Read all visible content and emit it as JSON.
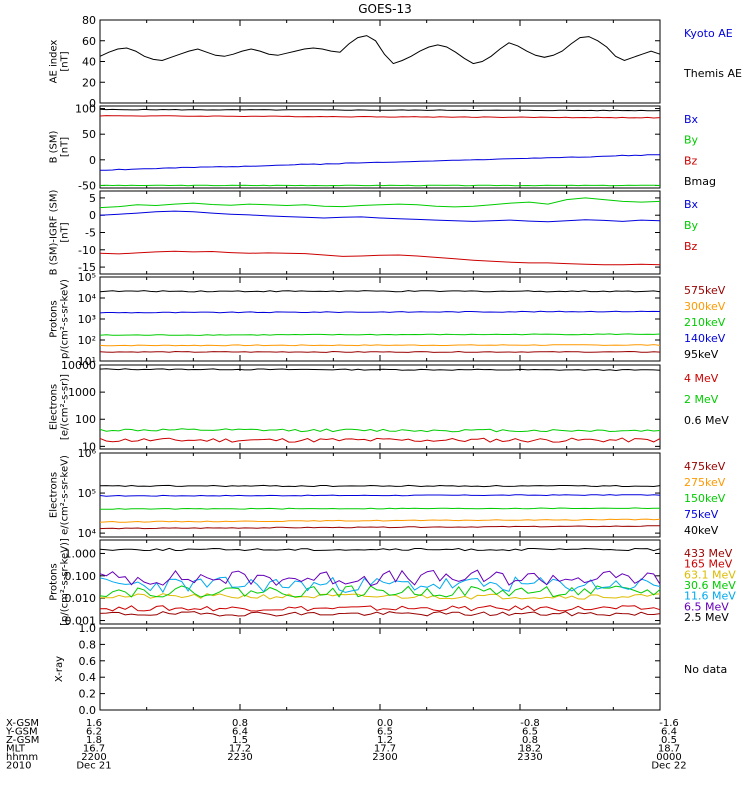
{
  "title": "GOES-13",
  "colors": {
    "black": "#000000",
    "blue": "#0000dd",
    "green": "#00cc00",
    "red": "#cc0000",
    "orange": "#ff9900",
    "gold": "#ddbb00",
    "cyan": "#00aaee",
    "purple": "#6600bb",
    "darkred": "#990000"
  },
  "chart_data": [
    {
      "type": "line",
      "ylabel": [
        "AE index",
        "[nT]"
      ],
      "ylim": [
        0,
        80
      ],
      "scale": "linear",
      "yticks": [
        0,
        20,
        40,
        60,
        80
      ],
      "ytick_labels": [
        "0",
        "20",
        "40",
        "60",
        "80"
      ],
      "series": [
        {
          "name": "Kyoto AE",
          "color": "blue",
          "base": 18,
          "amp": 3,
          "noise": 1,
          "seed": 1
        },
        {
          "name": "Themis AE",
          "color": "black",
          "values": [
            45,
            49,
            52,
            53,
            50,
            45,
            42,
            41,
            44,
            47,
            50,
            52,
            49,
            46,
            45,
            47,
            50,
            52,
            50,
            47,
            46,
            48,
            50,
            52,
            53,
            52,
            50,
            49,
            57,
            63,
            65,
            60,
            47,
            38,
            41,
            45,
            50,
            54,
            56,
            54,
            49,
            43,
            38,
            40,
            45,
            52,
            58,
            55,
            50,
            46,
            44,
            46,
            50,
            57,
            63,
            64,
            60,
            54,
            45,
            41,
            44,
            47,
            50,
            47
          ]
        }
      ]
    },
    {
      "type": "line",
      "ylabel": [
        "B (SM)",
        "[nT]"
      ],
      "ylim": [
        -55,
        105
      ],
      "scale": "linear",
      "yticks": [
        -50,
        0,
        50,
        100
      ],
      "ytick_labels": [
        "-50",
        "0",
        "50",
        "100"
      ],
      "series": [
        {
          "name": "Bx",
          "color": "blue",
          "start": -20,
          "end": 10,
          "noise": 0.3,
          "seed": 2
        },
        {
          "name": "By",
          "color": "green",
          "start": -50,
          "end": -50,
          "noise": 0.2,
          "seed": 3
        },
        {
          "name": "Bz",
          "color": "red",
          "start": 86,
          "end": 82,
          "noise": 0.2,
          "seed": 4
        },
        {
          "name": "Bmag",
          "color": "black",
          "start": 98,
          "end": 96,
          "noise": 0.2,
          "seed": 5
        }
      ]
    },
    {
      "type": "line",
      "ylabel": [
        "B (SM)-IGRF (SM)",
        "[nT]"
      ],
      "ylim": [
        -17,
        7
      ],
      "scale": "linear",
      "yticks": [
        -15,
        -10,
        -5,
        0,
        5
      ],
      "ytick_labels": [
        "-15",
        "-10",
        "-5",
        "0",
        "5"
      ],
      "series": [
        {
          "name": "Bx",
          "color": "blue",
          "values": [
            0,
            0.3,
            0.6,
            1,
            1.2,
            1,
            0.6,
            0.3,
            0.1,
            -0.2,
            -0.4,
            -0.6,
            -0.8,
            -0.6,
            -0.5,
            -0.8,
            -1,
            -1.2,
            -1.4,
            -1.6,
            -1.8,
            -1.6,
            -1.4,
            -1.7,
            -1.9,
            -1.6,
            -1.3,
            -1.5,
            -1.8,
            -1.4,
            -1.6
          ]
        },
        {
          "name": "By",
          "color": "green",
          "values": [
            2.2,
            2.5,
            3,
            2.8,
            3.2,
            3.5,
            3.1,
            2.9,
            3.2,
            3,
            2.8,
            3,
            2.6,
            2.5,
            2.8,
            3,
            3.2,
            3,
            2.6,
            2.4,
            2.6,
            3,
            3.5,
            3.8,
            3.2,
            4.5,
            5,
            4.5,
            4,
            3.8,
            4
          ]
        },
        {
          "name": "Bz",
          "color": "red",
          "values": [
            -11,
            -11.2,
            -10.9,
            -10.6,
            -10.4,
            -10.6,
            -10.5,
            -10.8,
            -11,
            -10.9,
            -11,
            -11.1,
            -11.5,
            -11.9,
            -11.8,
            -11.6,
            -11.5,
            -11.8,
            -12.2,
            -12.6,
            -13,
            -13.3,
            -13.6,
            -13.8,
            -13.8,
            -14,
            -14.2,
            -14.3,
            -14.3,
            -14.2,
            -14.3
          ]
        }
      ]
    },
    {
      "type": "line",
      "ylabel": [
        "Protons",
        "p/(cm²-s-sr-keV)"
      ],
      "ylim": [
        10,
        100000
      ],
      "scale": "log",
      "yticks": [
        10,
        100,
        1000,
        10000,
        100000
      ],
      "ytick_labels": [
        "10¹",
        "10²",
        "10³",
        "10⁴",
        "10⁵"
      ],
      "series": [
        {
          "name": "575keV",
          "color": "darkred",
          "start": 27,
          "end": 27,
          "noise": 0.02,
          "seed": 6
        },
        {
          "name": "300keV",
          "color": "orange",
          "start": 55,
          "end": 58,
          "noise": 0.02,
          "seed": 7
        },
        {
          "name": "210keV",
          "color": "green",
          "start": 170,
          "end": 190,
          "noise": 0.02,
          "seed": 8
        },
        {
          "name": "140keV",
          "color": "blue",
          "start": 2000,
          "end": 2300,
          "noise": 0.02,
          "seed": 9
        },
        {
          "name": "95keV",
          "color": "black",
          "start": 21000,
          "end": 21000,
          "noise": 0.03,
          "seed": 10
        }
      ]
    },
    {
      "type": "line",
      "ylabel": [
        "Electrons",
        "[e/(cm²-s-sr)]"
      ],
      "ylim": [
        8,
        10000
      ],
      "scale": "log",
      "yticks": [
        10,
        100,
        1000,
        10000
      ],
      "ytick_labels": [
        "10",
        "100",
        "1000",
        "10000"
      ],
      "series": [
        {
          "name": "4 MeV",
          "color": "red",
          "start": 17,
          "end": 17,
          "noise": 0.08,
          "seed": 11
        },
        {
          "name": "2 MeV",
          "color": "green",
          "start": 40,
          "end": 38,
          "noise": 0.05,
          "seed": 12
        },
        {
          "name": "0.6 MeV",
          "color": "black",
          "start": 7000,
          "end": 6500,
          "noise": 0.02,
          "seed": 13
        }
      ]
    },
    {
      "type": "line",
      "ylabel": [
        "Electrons",
        "e/(cm²-s-sr-keV)"
      ],
      "ylim": [
        8000,
        1000000
      ],
      "scale": "log",
      "yticks": [
        10000,
        100000,
        1000000
      ],
      "ytick_labels": [
        "10⁴",
        "10⁵",
        "10⁶"
      ],
      "series": [
        {
          "name": "475keV",
          "color": "darkred",
          "start": 13000,
          "end": 15000,
          "noise": 0.01,
          "seed": 14
        },
        {
          "name": "275keV",
          "color": "orange",
          "start": 19000,
          "end": 22000,
          "noise": 0.01,
          "seed": 15
        },
        {
          "name": "150keV",
          "color": "green",
          "start": 40000,
          "end": 42000,
          "noise": 0.01,
          "seed": 16
        },
        {
          "name": "75keV",
          "color": "blue",
          "start": 85000,
          "end": 90000,
          "noise": 0.01,
          "seed": 17
        },
        {
          "name": "40keV",
          "color": "black",
          "start": 150000,
          "end": 150000,
          "noise": 0.015,
          "seed": 18
        }
      ]
    },
    {
      "type": "line",
      "ylabel": [
        "Protons",
        "[p/(cm²-s-sr-keV)]"
      ],
      "ylim": [
        0.0007,
        4
      ],
      "scale": "log",
      "yticks": [
        0.001,
        0.01,
        0.1,
        1
      ],
      "ytick_labels": [
        "0.001",
        "0.010",
        "0.100",
        "1.000"
      ],
      "series": [
        {
          "name": "433 MeV",
          "color": "darkred",
          "start": 0.002,
          "end": 0.002,
          "noise": 0.1,
          "seed": 19
        },
        {
          "name": "165 MeV",
          "color": "red",
          "start": 0.0035,
          "end": 0.0035,
          "noise": 0.12,
          "seed": 20
        },
        {
          "name": "63.1 MeV",
          "color": "gold",
          "start": 0.012,
          "end": 0.012,
          "noise": 0.12,
          "seed": 21
        },
        {
          "name": "30.6 MeV",
          "color": "green",
          "start": 0.02,
          "end": 0.02,
          "noise": 0.25,
          "seed": 22
        },
        {
          "name": "11.6 MeV",
          "color": "cyan",
          "start": 0.04,
          "end": 0.04,
          "noise": 0.35,
          "seed": 23
        },
        {
          "name": "6.5 MeV",
          "color": "purple",
          "start": 0.08,
          "end": 0.08,
          "noise": 0.35,
          "seed": 24
        },
        {
          "name": "2.5 MeV",
          "color": "black",
          "start": 1.5,
          "end": 1.5,
          "noise": 0.05,
          "seed": 25
        }
      ]
    },
    {
      "type": "line",
      "ylabel": [
        "X-ray"
      ],
      "ylim": [
        0,
        1
      ],
      "scale": "linear",
      "yticks": [
        0,
        0.2,
        0.4,
        0.6,
        0.8,
        1.0
      ],
      "ytick_labels": [
        "0.0",
        "0.2",
        "0.4",
        "0.6",
        "0.8",
        "1.0"
      ],
      "series": [],
      "note": "No data"
    }
  ],
  "xaxis": {
    "labels": [
      {
        "name": "X-GSM",
        "values": [
          "1.6",
          "0.8",
          "0.0",
          "-0.8",
          "-1.6"
        ]
      },
      {
        "name": "Y-GSM",
        "values": [
          "6.2",
          "6.4",
          "6.5",
          "6.5",
          "6.4"
        ]
      },
      {
        "name": "Z-GSM",
        "values": [
          "1.8",
          "1.5",
          "1.2",
          "0.8",
          "0.5"
        ]
      },
      {
        "name": "MLT",
        "values": [
          "16.7",
          "17.2",
          "17.7",
          "18.2",
          "18.7"
        ]
      },
      {
        "name": "hhmm",
        "values": [
          "2200",
          "2230",
          "2300",
          "2330",
          "0000"
        ]
      },
      {
        "name": "2010",
        "values": [
          "Dec 21",
          "",
          "",
          "",
          "Dec 22"
        ]
      }
    ]
  }
}
